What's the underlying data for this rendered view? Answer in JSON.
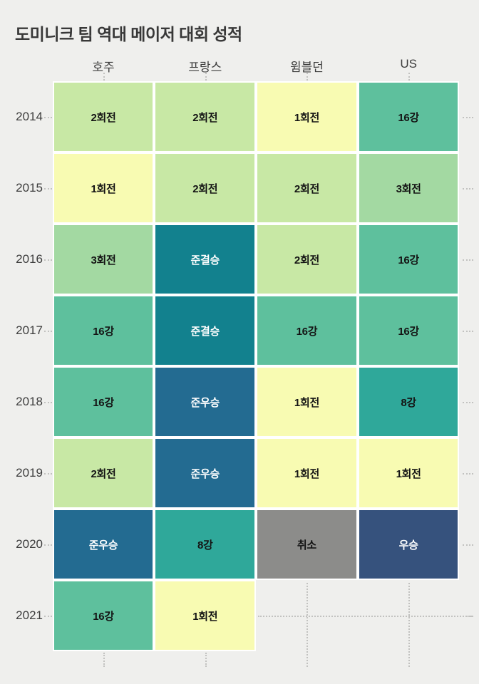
{
  "title": "도미니크 팀 역대 메이저 대회 성적",
  "chart_data": {
    "type": "heatmap",
    "columns": [
      "호주",
      "프랑스",
      "윔블던",
      "US"
    ],
    "rows": [
      {
        "year": "2014",
        "results": [
          "2회전",
          "2회전",
          "1회전",
          "16강"
        ]
      },
      {
        "year": "2015",
        "results": [
          "1회전",
          "2회전",
          "2회전",
          "3회전"
        ]
      },
      {
        "year": "2016",
        "results": [
          "3회전",
          "준결승",
          "2회전",
          "16강"
        ]
      },
      {
        "year": "2017",
        "results": [
          "16강",
          "준결승",
          "16강",
          "16강"
        ]
      },
      {
        "year": "2018",
        "results": [
          "16강",
          "준우승",
          "1회전",
          "8강"
        ]
      },
      {
        "year": "2019",
        "results": [
          "2회전",
          "준우승",
          "1회전",
          "1회전"
        ]
      },
      {
        "year": "2020",
        "results": [
          "준우승",
          "8강",
          "취소",
          "우승"
        ]
      },
      {
        "year": "2021",
        "results": [
          "16강",
          "1회전",
          null,
          null
        ]
      }
    ],
    "result_colors": {
      "1회전": "#f8fbb2",
      "2회전": "#c8e8a5",
      "3회전": "#a3d9a2",
      "16강": "#5ec09d",
      "8강": "#2fa89a",
      "준결승": "#12818e",
      "준우승": "#236b91",
      "우승": "#36527d",
      "취소": "#8c8c8a"
    },
    "light_text_results": [
      "준결승",
      "준우승",
      "우승"
    ],
    "layout_colors": {
      "background": "#efefed",
      "cell_gap": "#ffffff",
      "grid_dots": "#c2c2c0",
      "title_text": "#383838",
      "label_text": "#3d3d3d",
      "cell_text_dark": "#141414",
      "cell_text_light": "#ffffff"
    }
  }
}
